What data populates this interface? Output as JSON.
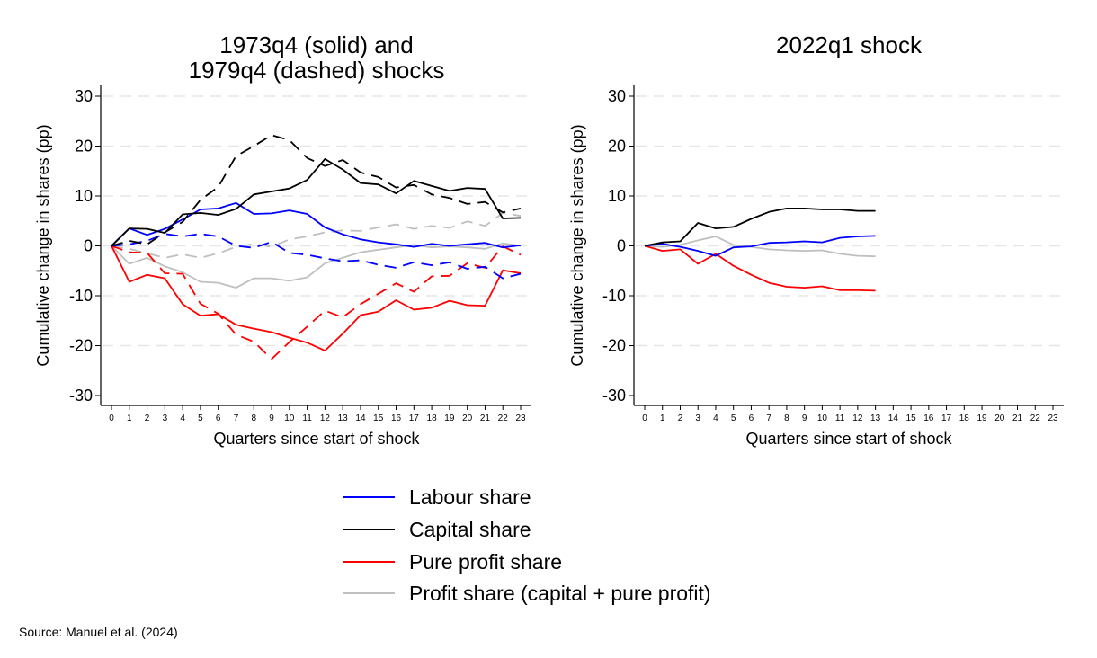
{
  "source_note": "Source: Manuel et al. (2024)",
  "legend": [
    {
      "label": "Labour share",
      "color": "#0000ff"
    },
    {
      "label": "Capital share",
      "color": "#000000"
    },
    {
      "label": "Pure profit share",
      "color": "#ff0000"
    },
    {
      "label": "Profit share (capital + pure profit)",
      "color": "#bfbfbf"
    }
  ],
  "chart_data": [
    {
      "type": "line",
      "title_lines": [
        "1973q4 (solid) and",
        "1979q4 (dashed) shocks"
      ],
      "xlabel": "Quarters since start of shock",
      "ylabel": "Cumulative change in shares (pp)",
      "xlim": [
        0,
        23
      ],
      "ylim": [
        -30,
        30
      ],
      "yticks": [
        30,
        20,
        10,
        0,
        -10,
        -20,
        -30
      ],
      "xticks": [
        0,
        1,
        2,
        3,
        4,
        5,
        6,
        7,
        8,
        9,
        10,
        11,
        12,
        13,
        14,
        15,
        16,
        17,
        18,
        19,
        20,
        21,
        22,
        23
      ],
      "grid": "horizontal dashed",
      "series": [
        {
          "name": "Labour share (1973q4)",
          "color": "#0000ff",
          "style": "solid",
          "x": [
            0,
            1,
            2,
            3,
            4,
            5,
            6,
            7,
            8,
            9,
            10,
            11,
            12,
            13,
            14,
            15,
            16,
            17,
            18,
            19,
            20,
            21,
            22,
            23
          ],
          "values": [
            0,
            3.5,
            2.2,
            3.4,
            5.3,
            7.3,
            7.5,
            8.6,
            6.4,
            6.5,
            7.1,
            6.4,
            3.7,
            2.3,
            1.3,
            0.7,
            0.3,
            -0.2,
            0.4,
            0,
            0.3,
            0.6,
            -0.3,
            0.1
          ]
        },
        {
          "name": "Capital share (1973q4)",
          "color": "#000000",
          "style": "solid",
          "x": [
            0,
            1,
            2,
            3,
            4,
            5,
            6,
            7,
            8,
            9,
            10,
            11,
            12,
            13,
            14,
            15,
            16,
            17,
            18,
            19,
            20,
            21,
            22,
            23
          ],
          "values": [
            0,
            3.5,
            3.4,
            2.6,
            6.3,
            6.6,
            6.2,
            7.4,
            10.3,
            10.9,
            11.5,
            13.2,
            17.4,
            15.3,
            12.6,
            12.3,
            10.5,
            13.0,
            12.0,
            11.0,
            11.6,
            11.4,
            5.5,
            5.6
          ]
        },
        {
          "name": "Pure profit share (1973q4)",
          "color": "#ff0000",
          "style": "solid",
          "x": [
            0,
            1,
            2,
            3,
            4,
            5,
            6,
            7,
            8,
            9,
            10,
            11,
            12,
            13,
            14,
            15,
            16,
            17,
            18,
            19,
            20,
            21,
            22,
            23
          ],
          "values": [
            0,
            -7.2,
            -5.8,
            -6.5,
            -11.7,
            -14.0,
            -13.7,
            -15.8,
            -16.6,
            -17.3,
            -18.4,
            -19.4,
            -21.0,
            -17.6,
            -13.9,
            -13.2,
            -10.9,
            -12.8,
            -12.4,
            -11.0,
            -11.9,
            -12.0,
            -4.9,
            -5.5
          ]
        },
        {
          "name": "Profit share (1973q4)",
          "color": "#bfbfbf",
          "style": "solid",
          "x": [
            0,
            1,
            2,
            3,
            4,
            5,
            6,
            7,
            8,
            9,
            10,
            11,
            12,
            13,
            14,
            15,
            16,
            17,
            18,
            19,
            20,
            21,
            22,
            23
          ],
          "values": [
            0,
            -3.6,
            -2.4,
            -4.1,
            -5.3,
            -7.2,
            -7.4,
            -8.4,
            -6.5,
            -6.5,
            -7.0,
            -6.3,
            -3.5,
            -2.4,
            -1.3,
            -0.8,
            -0.3,
            0.2,
            -0.3,
            -0.1,
            -0.3,
            -0.6,
            0.5,
            0
          ]
        },
        {
          "name": "Labour share (1979q4)",
          "color": "#0000ff",
          "style": "dashed",
          "x": [
            0,
            1,
            2,
            3,
            4,
            5,
            6,
            7,
            8,
            9,
            10,
            11,
            12,
            13,
            14,
            15,
            16,
            17,
            18,
            19,
            20,
            21,
            22,
            23
          ],
          "values": [
            0,
            0.3,
            1.0,
            2.4,
            1.9,
            2.4,
            1.9,
            0,
            -0.4,
            0.8,
            -1.4,
            -1.8,
            -2.5,
            -3.1,
            -2.9,
            -3.8,
            -4.4,
            -3.3,
            -3.9,
            -3.3,
            -4.6,
            -4.2,
            -6.5,
            -5.6
          ]
        },
        {
          "name": "Capital share (1979q4)",
          "color": "#000000",
          "style": "dashed",
          "x": [
            0,
            1,
            2,
            3,
            4,
            5,
            6,
            7,
            8,
            9,
            10,
            11,
            12,
            13,
            14,
            15,
            16,
            17,
            18,
            19,
            20,
            21,
            22,
            23
          ],
          "values": [
            0,
            1.0,
            0.3,
            2.7,
            4.8,
            9.2,
            11.8,
            18.0,
            20.0,
            22.2,
            21.2,
            17.6,
            16.0,
            17.2,
            14.7,
            13.8,
            11.7,
            12.2,
            10.3,
            9.6,
            8.4,
            8.8,
            6.7,
            7.5
          ]
        },
        {
          "name": "Pure profit share (1979q4)",
          "color": "#ff0000",
          "style": "dashed",
          "x": [
            0,
            1,
            2,
            3,
            4,
            5,
            6,
            7,
            8,
            9,
            10,
            11,
            12,
            13,
            14,
            15,
            16,
            17,
            18,
            19,
            20,
            21,
            22,
            23
          ],
          "values": [
            0,
            -1.3,
            -1.4,
            -5.5,
            -5.6,
            -11.6,
            -13.6,
            -17.8,
            -19.2,
            -22.7,
            -19.3,
            -16.2,
            -13.0,
            -14.3,
            -11.7,
            -9.6,
            -7.5,
            -9.2,
            -6.1,
            -6.0,
            -3.5,
            -4.4,
            -0.1,
            -1.8
          ]
        },
        {
          "name": "Profit share (1979q4)",
          "color": "#bfbfbf",
          "style": "dashed",
          "x": [
            0,
            1,
            2,
            3,
            4,
            5,
            6,
            7,
            8,
            9,
            10,
            11,
            12,
            13,
            14,
            15,
            16,
            17,
            18,
            19,
            20,
            21,
            22,
            23
          ],
          "values": [
            0,
            -0.6,
            -1.5,
            -2.4,
            -1.7,
            -2.4,
            -1.5,
            -0.2,
            0.4,
            -0.2,
            1.3,
            1.9,
            2.7,
            3.1,
            3.0,
            3.7,
            4.3,
            3.4,
            4.0,
            3.6,
            4.9,
            4.0,
            6.6,
            6.0
          ]
        }
      ]
    },
    {
      "type": "line",
      "title_lines": [
        "2022q1 shock"
      ],
      "xlabel": "Quarters since start of shock",
      "ylabel": "Cumulative change in shares (pp)",
      "xlim": [
        0,
        23
      ],
      "ylim": [
        -30,
        30
      ],
      "yticks": [
        30,
        20,
        10,
        0,
        -10,
        -20,
        -30
      ],
      "xticks": [
        0,
        1,
        2,
        3,
        4,
        5,
        6,
        7,
        8,
        9,
        10,
        11,
        12,
        13,
        14,
        15,
        16,
        17,
        18,
        19,
        20,
        21,
        22,
        23
      ],
      "grid": "horizontal dashed",
      "series": [
        {
          "name": "Labour share",
          "color": "#0000ff",
          "style": "solid",
          "x": [
            0,
            1,
            2,
            3,
            4,
            5,
            6,
            7,
            8,
            9,
            10,
            11,
            12,
            13
          ],
          "values": [
            0,
            0.4,
            -0.2,
            -1.0,
            -2.0,
            -0.3,
            -0.1,
            0.6,
            0.7,
            0.9,
            0.7,
            1.6,
            1.9,
            2.0
          ]
        },
        {
          "name": "Capital share",
          "color": "#000000",
          "style": "solid",
          "x": [
            0,
            1,
            2,
            3,
            4,
            5,
            6,
            7,
            8,
            9,
            10,
            11,
            12,
            13
          ],
          "values": [
            0,
            0.7,
            0.9,
            4.6,
            3.5,
            3.8,
            5.4,
            6.8,
            7.5,
            7.5,
            7.3,
            7.3,
            7.0,
            7.0
          ]
        },
        {
          "name": "Pure profit share",
          "color": "#ff0000",
          "style": "solid",
          "x": [
            0,
            1,
            2,
            3,
            4,
            5,
            6,
            7,
            8,
            9,
            10,
            11,
            12,
            13
          ],
          "values": [
            0,
            -1.0,
            -0.7,
            -3.6,
            -1.6,
            -4.0,
            -5.8,
            -7.4,
            -8.2,
            -8.4,
            -8.1,
            -8.9,
            -8.9,
            -9.0
          ]
        },
        {
          "name": "Profit share (capital + pure profit)",
          "color": "#bfbfbf",
          "style": "solid",
          "x": [
            0,
            1,
            2,
            3,
            4,
            5,
            6,
            7,
            8,
            9,
            10,
            11,
            12,
            13
          ],
          "values": [
            0,
            -0.2,
            0.2,
            1.1,
            1.9,
            0.2,
            -0.2,
            -0.7,
            -0.9,
            -1.0,
            -0.9,
            -1.6,
            -2.0,
            -2.1
          ]
        }
      ]
    }
  ]
}
